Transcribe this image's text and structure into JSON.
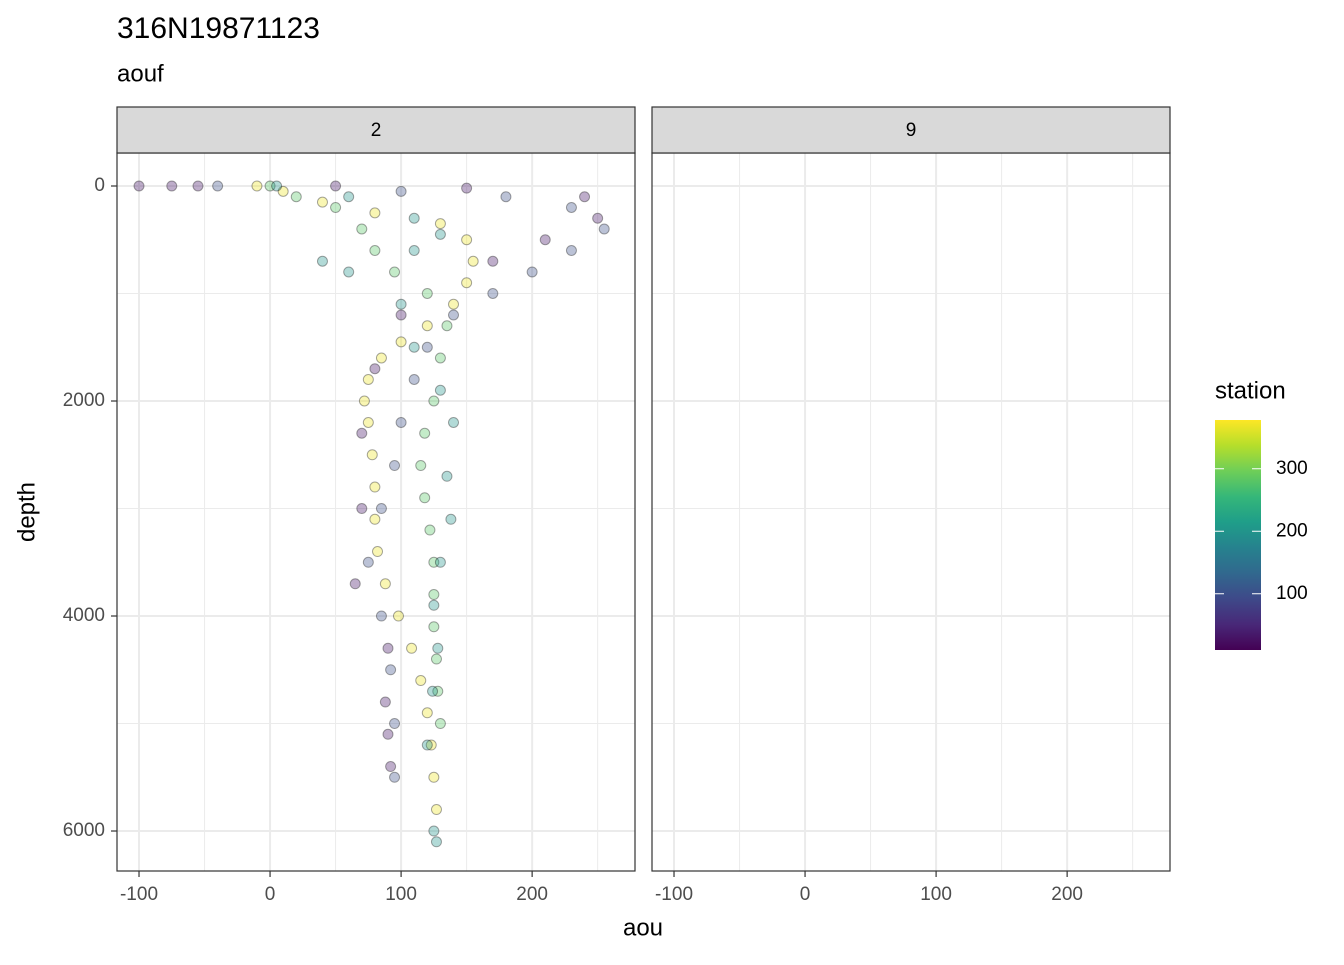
{
  "chart_data": {
    "type": "scatter",
    "title": "316N19871123",
    "subtitle": "aouf",
    "xlabel": "aou",
    "ylabel": "depth",
    "y_reversed": true,
    "grid": true,
    "xlim": [
      -116.8,
      278.5
    ],
    "xticks": [
      -100,
      0,
      100,
      200
    ],
    "ylim": [
      -307,
      6372
    ],
    "yticks": [
      0,
      2000,
      4000,
      6000
    ],
    "facets": [
      {
        "label": "2",
        "x": [
          -10,
          10,
          40,
          80,
          130,
          150,
          155,
          150,
          140,
          120,
          100,
          85,
          75,
          72,
          75,
          78,
          80,
          80,
          82,
          88,
          98,
          108,
          115,
          120,
          123,
          125,
          127,
          0,
          20,
          50,
          70,
          80,
          95,
          120,
          135,
          130,
          125,
          118,
          115,
          118,
          122,
          125,
          125,
          125,
          127,
          128,
          130,
          -40,
          100,
          180,
          230,
          255,
          230,
          200,
          170,
          140,
          120,
          110,
          100,
          95,
          85,
          75,
          85,
          92,
          95,
          95,
          -100,
          -75,
          -55,
          50,
          150,
          240,
          250,
          210,
          170,
          100,
          80,
          70,
          70,
          65,
          90,
          88,
          90,
          92,
          5,
          60,
          110,
          130,
          110,
          60,
          40,
          100,
          110,
          130,
          140,
          135,
          138,
          130,
          125,
          128,
          124,
          120,
          125,
          127
        ],
        "y": [
          0,
          50,
          150,
          250,
          350,
          500,
          700,
          900,
          1100,
          1300,
          1450,
          1600,
          1800,
          2000,
          2200,
          2500,
          2800,
          3100,
          3400,
          3700,
          4000,
          4300,
          4600,
          4900,
          5200,
          5500,
          5800,
          0,
          100,
          200,
          400,
          600,
          800,
          1000,
          1300,
          1600,
          2000,
          2300,
          2600,
          2900,
          3200,
          3500,
          3800,
          4100,
          4400,
          4700,
          5000,
          0,
          50,
          100,
          200,
          400,
          600,
          800,
          1000,
          1200,
          1500,
          1800,
          2200,
          2600,
          3000,
          3500,
          4000,
          4500,
          5000,
          5500,
          0,
          0,
          0,
          0,
          20,
          100,
          300,
          500,
          700,
          1200,
          1700,
          2300,
          3000,
          3700,
          4300,
          4800,
          5100,
          5400,
          0,
          100,
          300,
          450,
          600,
          800,
          700,
          1100,
          1500,
          1900,
          2200,
          2700,
          3100,
          3500,
          3900,
          4300,
          4700,
          5200,
          6000,
          6100
        ],
        "station": [
          370,
          370,
          370,
          370,
          370,
          370,
          370,
          370,
          370,
          370,
          370,
          370,
          370,
          370,
          370,
          370,
          370,
          370,
          370,
          370,
          370,
          370,
          370,
          370,
          370,
          370,
          370,
          280,
          280,
          280,
          280,
          280,
          280,
          280,
          280,
          280,
          280,
          280,
          280,
          280,
          280,
          280,
          280,
          280,
          280,
          280,
          280,
          100,
          100,
          100,
          100,
          100,
          100,
          100,
          100,
          100,
          100,
          100,
          100,
          100,
          100,
          100,
          100,
          100,
          100,
          100,
          30,
          30,
          30,
          30,
          30,
          30,
          30,
          30,
          30,
          30,
          30,
          30,
          30,
          30,
          30,
          30,
          30,
          30,
          200,
          200,
          200,
          200,
          200,
          200,
          200,
          200,
          200,
          200,
          200,
          200,
          200,
          200,
          200,
          200,
          200,
          200,
          200,
          200
        ]
      },
      {
        "label": "9",
        "x": [],
        "y": [],
        "station": []
      }
    ],
    "colorbar": {
      "title": "station",
      "lim": [
        10,
        378
      ],
      "ticks": [
        100,
        200,
        300
      ],
      "colors": [
        "#440154",
        "#482878",
        "#3e4989",
        "#31688e",
        "#26828e",
        "#1f9e89",
        "#35b779",
        "#6ece58",
        "#b5de2b",
        "#fde725"
      ]
    }
  }
}
